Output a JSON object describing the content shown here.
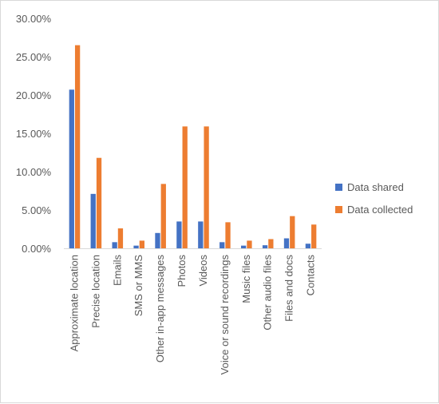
{
  "chart_data": {
    "type": "bar",
    "categories": [
      "Approximate location",
      "Precise location",
      "Emails",
      "SMS or MMS",
      "Other in-app messages",
      "Photos",
      "Videos",
      "Voice or sound recordings",
      "Music files",
      "Other audio files",
      "Files and docs",
      "Contacts"
    ],
    "series": [
      {
        "name": "Data shared",
        "color": "#4472C4",
        "values": [
          20.7,
          7.1,
          0.8,
          0.35,
          2.0,
          3.5,
          3.5,
          0.8,
          0.35,
          0.4,
          1.3,
          0.6
        ]
      },
      {
        "name": "Data collected",
        "color": "#ED7D31",
        "values": [
          26.5,
          11.8,
          2.6,
          1.0,
          8.4,
          15.9,
          15.9,
          3.4,
          1.0,
          1.2,
          4.2,
          3.1
        ]
      }
    ],
    "ylim": [
      0,
      30
    ],
    "yticks": [
      0,
      5,
      10,
      15,
      20,
      25,
      30
    ],
    "ytick_labels": [
      "0.00%",
      "5.00%",
      "10.00%",
      "15.00%",
      "20.00%",
      "25.00%",
      "30.00%"
    ],
    "gridlines": false,
    "legend_position": "right"
  }
}
